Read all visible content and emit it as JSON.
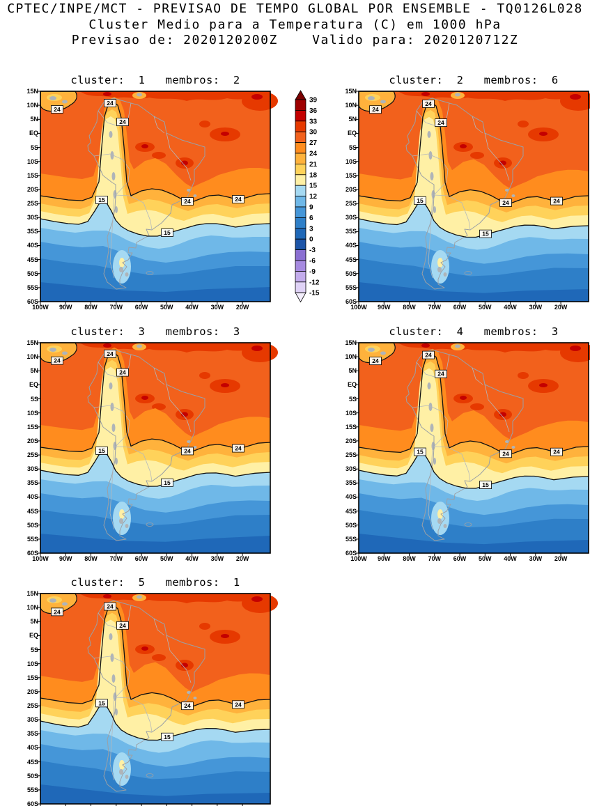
{
  "header": {
    "line1": "CPTEC/INPE/MCT - PREVISAO DE TEMPO GLOBAL POR ENSEMBLE - TQ0126L028",
    "line2": "Cluster Medio para a Temperatura (C) em 1000 hPa",
    "line3": "Previsao de: 2020120200Z    Valido para: 2020120712Z"
  },
  "panels": [
    {
      "cluster": "1",
      "membros": "2",
      "label": "cluster:  1   membros:  2"
    },
    {
      "cluster": "2",
      "membros": "6",
      "label": "cluster:  2   membros:  6"
    },
    {
      "cluster": "3",
      "membros": "3",
      "label": "cluster:  3   membros:  3"
    },
    {
      "cluster": "4",
      "membros": "3",
      "label": "cluster:  4   membros:  3"
    },
    {
      "cluster": "5",
      "membros": "1",
      "label": "cluster:  5   membros:  1"
    }
  ],
  "axes": {
    "lat": [
      "15N",
      "10N",
      "5N",
      "EQ",
      "5S",
      "10S",
      "15S",
      "20S",
      "25S",
      "30S",
      "35S",
      "40S",
      "45S",
      "50S",
      "55S",
      "60S"
    ],
    "lon": [
      "100W",
      "90W",
      "80W",
      "70W",
      "60W",
      "50W",
      "40W",
      "30W",
      "20W"
    ]
  },
  "colorbar": {
    "values": [
      "39",
      "36",
      "33",
      "30",
      "27",
      "24",
      "21",
      "18",
      "15",
      "12",
      "9",
      "6",
      "3",
      "0",
      "-3",
      "-6",
      "-9",
      "-12",
      "-15"
    ],
    "segment_colors": [
      "#7A0000",
      "#9E0000",
      "#C40000",
      "#E63900",
      "#F2611C",
      "#FF8C1E",
      "#FFB23C",
      "#FFD25A",
      "#FFF0A5",
      "#A5D9F2",
      "#6FB8E8",
      "#4596D8",
      "#2E7FC8",
      "#1F68B8",
      "#1D55A8",
      "#8A6FD2",
      "#A68AE0",
      "#C3ACEC",
      "#DFD2F6",
      "#F3EEFC"
    ]
  },
  "map": {
    "palette": {
      "33": "#C40000",
      "30": "#E63900",
      "27": "#F2611C",
      "24": "#FF8C1E",
      "21": "#FFB23C",
      "18": "#FFD25A",
      "15": "#FFF0A5",
      "12": "#A5D9F2",
      "9": "#6FB8E8",
      "6": "#4596D8",
      "3": "#2E7FC8",
      "0": "#1F68B8"
    },
    "coast_color": "#9BA0A6",
    "border_color": "#B4B8BC",
    "contour_labels": {
      "warm": "24",
      "cool": "15"
    }
  },
  "chart_data": {
    "type": "heatmap",
    "subtype": "filled-contour-temperature-map",
    "title": "Cluster Medio para a Temperatura (C) em 1000 hPa",
    "source_header": "CPTEC/INPE/MCT - PREVISAO DE TEMPO GLOBAL POR ENSEMBLE - TQ0126L028",
    "init_time": "2020120200Z",
    "valid_time": "2020120712Z",
    "variable": "Temperatura",
    "units": "C",
    "level_hPa": 1000,
    "lon_range": [
      "100W",
      "20W"
    ],
    "lat_range": [
      "15N",
      "60S"
    ],
    "contour_interval": 3,
    "levels": [
      -15,
      -12,
      -9,
      -6,
      -3,
      0,
      3,
      6,
      9,
      12,
      15,
      18,
      21,
      24,
      27,
      30,
      33,
      36,
      39
    ],
    "labeled_contours": [
      24,
      15
    ],
    "panels": [
      {
        "cluster": 1,
        "membros": 2
      },
      {
        "cluster": 2,
        "membros": 6
      },
      {
        "cluster": 3,
        "membros": 3
      },
      {
        "cluster": 4,
        "membros": 3
      },
      {
        "cluster": 5,
        "membros": 1
      }
    ],
    "pattern_summary": "27-33C over Amazonia and tropical South America; isolated 30-33C cores in NE Brazil and tropical Atlantic; 24C isotherm near 23S in the east, wrapping northward along the Andes cold tongue to ~10N; 15C isotherm near 26S at the Chilean coast and ~33S in the east; 3-12C blues south of ~38S toward 60S; coolest band at the far south.",
    "legend_position": "between top two panels",
    "grid": false
  }
}
